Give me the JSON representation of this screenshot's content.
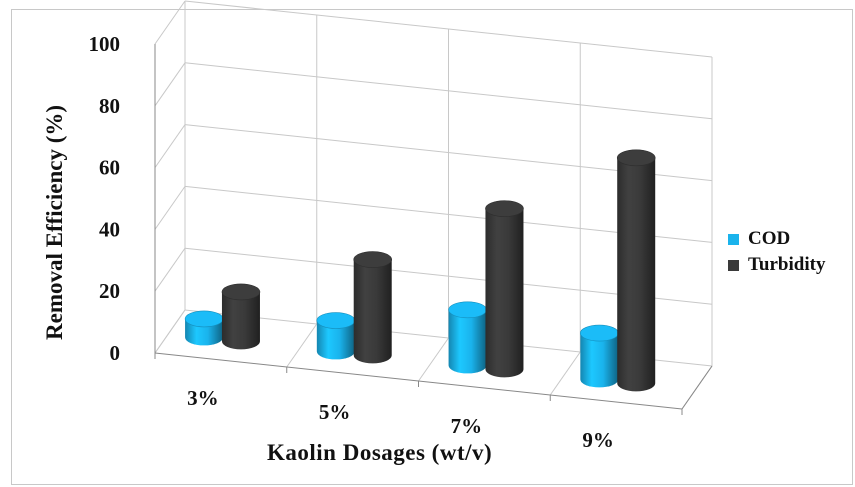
{
  "chart_data": {
    "type": "bar",
    "style": "3d-cylinder",
    "categories": [
      "3%",
      "5%",
      "7%",
      "9%"
    ],
    "series": [
      {
        "name": "COD",
        "values": [
          6,
          10,
          18,
          15
        ],
        "color": "#1ab3ec"
      },
      {
        "name": "Turbidity",
        "values": [
          16,
          31,
          52,
          73
        ],
        "color": "#3a3a3a"
      }
    ],
    "xlabel": "Kaolin Dosages (wt/v)",
    "ylabel": "Removal Efficiency (%)",
    "ylim": [
      0,
      100
    ],
    "yticks": [
      "0",
      "20",
      "40",
      "60",
      "80",
      "100"
    ],
    "grid": true,
    "legend": "right"
  }
}
